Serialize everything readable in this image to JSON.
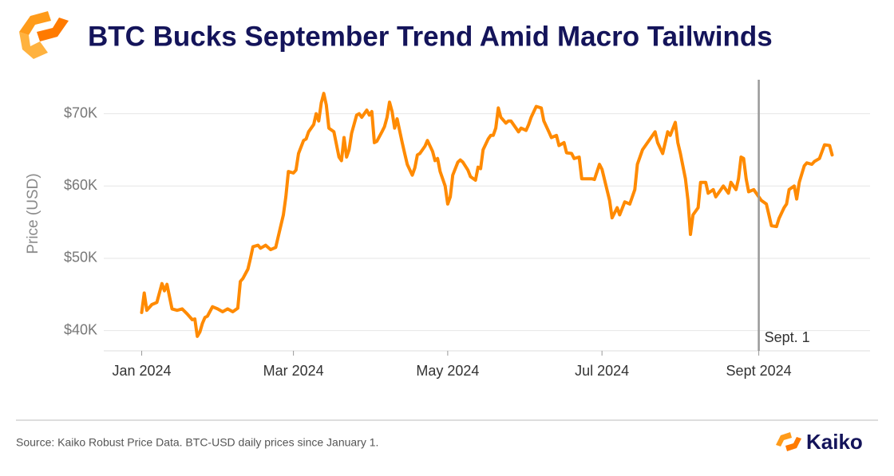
{
  "chart_data": {
    "type": "line",
    "title": "BTC Bucks September Trend Amid Macro Tailwinds",
    "y_label": "Price (USD)",
    "color": "#ff8a00",
    "grid": true,
    "x": [
      0,
      1,
      2,
      4,
      6,
      8,
      9,
      10,
      12,
      14,
      16,
      18,
      20,
      21,
      22,
      23,
      24,
      25,
      26,
      28,
      30,
      32,
      34,
      36,
      38,
      39,
      40,
      42,
      43,
      44,
      46,
      47,
      49,
      51,
      53,
      54,
      56,
      57,
      58,
      60,
      61,
      62,
      64,
      65,
      66,
      68,
      69,
      70,
      71,
      72,
      73,
      74,
      76,
      78,
      79,
      80,
      81,
      82,
      83,
      85,
      86,
      87,
      89,
      90,
      91,
      92,
      93,
      95,
      96,
      97,
      98,
      99,
      100,
      101,
      103,
      104,
      105,
      107,
      108,
      109,
      110,
      112,
      113,
      115,
      116,
      117,
      118,
      120,
      121,
      122,
      123,
      125,
      126,
      127,
      129,
      130,
      132,
      133,
      134,
      135,
      137,
      138,
      139,
      140,
      141,
      142,
      144,
      145,
      146,
      148,
      149,
      150,
      152,
      153,
      154,
      156,
      158,
      159,
      161,
      162,
      164,
      165,
      167,
      168,
      170,
      171,
      173,
      174,
      176,
      178,
      179,
      181,
      182,
      185,
      186,
      188,
      189,
      191,
      193,
      195,
      196,
      198,
      200,
      203,
      204,
      206,
      208,
      209,
      211,
      212,
      213,
      215,
      216,
      217,
      218,
      220,
      221,
      223,
      224,
      226,
      227,
      229,
      230,
      232,
      233,
      235,
      236,
      237,
      238,
      239,
      240,
      242,
      244,
      245,
      247,
      248,
      249,
      251,
      252,
      254,
      255,
      256,
      258,
      259,
      260,
      262,
      263,
      265,
      266,
      268,
      270,
      272,
      273
    ],
    "values": [
      42500,
      45200,
      42800,
      43600,
      43900,
      46500,
      45500,
      46400,
      43000,
      42800,
      43000,
      42300,
      41500,
      41600,
      39200,
      39800,
      41000,
      41800,
      42000,
      43300,
      43000,
      42600,
      43000,
      42600,
      43100,
      46800,
      47200,
      48500,
      50000,
      51600,
      51800,
      51400,
      51800,
      51200,
      51500,
      53000,
      56000,
      58500,
      62000,
      61800,
      62200,
      64500,
      66300,
      66500,
      67500,
      68500,
      70000,
      69000,
      71500,
      72800,
      71200,
      68000,
      67500,
      64000,
      63500,
      66700,
      64000,
      65000,
      67300,
      69800,
      70000,
      69500,
      70500,
      69800,
      70300,
      66000,
      66200,
      67500,
      68200,
      69500,
      71600,
      70300,
      68000,
      69300,
      66000,
      64500,
      63000,
      61500,
      62500,
      64300,
      64500,
      65500,
      66300,
      64800,
      63500,
      63800,
      62000,
      60000,
      57500,
      58500,
      61500,
      63300,
      63600,
      63300,
      62200,
      61300,
      60800,
      62600,
      62400,
      65000,
      66500,
      67000,
      67000,
      68000,
      70800,
      69500,
      68700,
      69000,
      69000,
      68000,
      67500,
      68000,
      67700,
      68500,
      69500,
      71000,
      70800,
      69000,
      67500,
      66700,
      67000,
      65600,
      66000,
      64600,
      64500,
      63800,
      64000,
      61000,
      61000,
      61000,
      60900,
      63000,
      62300,
      58000,
      55600,
      57000,
      56000,
      57800,
      57500,
      59500,
      63000,
      65000,
      66000,
      67500,
      66000,
      64500,
      67500,
      67000,
      68800,
      66000,
      64500,
      61000,
      58000,
      53300,
      56000,
      57000,
      60500,
      60500,
      59000,
      59500,
      58500,
      59500,
      60000,
      59000,
      60500,
      59500,
      61000,
      64000,
      63800,
      61000,
      59200,
      59500,
      58500,
      58000,
      57500,
      56000,
      54500,
      54400,
      55500,
      57000,
      57500,
      59500,
      60000,
      58200,
      60500,
      62800,
      63200,
      63000,
      63400,
      63800,
      65700,
      65600,
      64300
    ],
    "xlim": [
      -15,
      288
    ],
    "xticks": [
      {
        "value": 0,
        "label": "Jan 2024"
      },
      {
        "value": 60,
        "label": "Mar 2024"
      },
      {
        "value": 121,
        "label": "May 2024"
      },
      {
        "value": 182,
        "label": "Jul 2024"
      },
      {
        "value": 244,
        "label": "Sept 2024"
      }
    ],
    "ylim": [
      37200,
      74700
    ],
    "yticks": [
      {
        "value": 40000,
        "label": "$40K"
      },
      {
        "value": 50000,
        "label": "$50K"
      },
      {
        "value": 60000,
        "label": "$60K"
      },
      {
        "value": 70000,
        "label": "$70K"
      }
    ],
    "annotations": [
      {
        "text": "Sept. 1",
        "x": 244
      }
    ]
  },
  "footer": {
    "source": "Source: Kaiko Robust Price Data. BTC-USD daily prices since January 1.",
    "brand": "Kaiko"
  }
}
